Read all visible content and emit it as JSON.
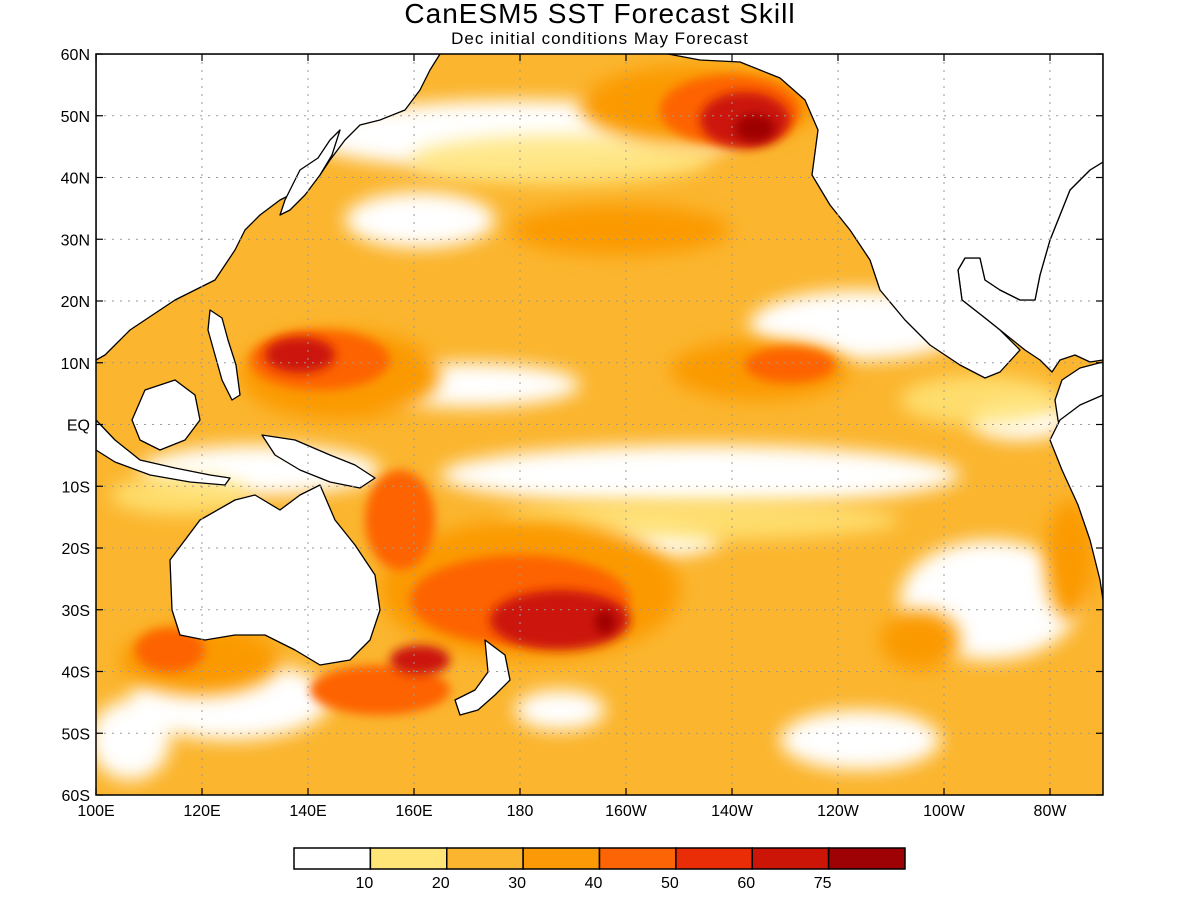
{
  "header": {
    "title": "CanESM5 SST Forecast Skill",
    "subtitle": "Dec initial conditions  May Forecast"
  },
  "map": {
    "lon_range": [
      100,
      290
    ],
    "lat_range": [
      -60,
      60
    ],
    "x_ticks": [
      {
        "lon": 100,
        "label": "100E"
      },
      {
        "lon": 120,
        "label": "120E"
      },
      {
        "lon": 140,
        "label": "140E"
      },
      {
        "lon": 160,
        "label": "160E"
      },
      {
        "lon": 180,
        "label": "180"
      },
      {
        "lon": 200,
        "label": "160W"
      },
      {
        "lon": 220,
        "label": "140W"
      },
      {
        "lon": 240,
        "label": "120W"
      },
      {
        "lon": 260,
        "label": "100W"
      },
      {
        "lon": 280,
        "label": "80W"
      }
    ],
    "y_ticks": [
      {
        "lat": 60,
        "label": "60N"
      },
      {
        "lat": 50,
        "label": "50N"
      },
      {
        "lat": 40,
        "label": "40N"
      },
      {
        "lat": 30,
        "label": "30N"
      },
      {
        "lat": 20,
        "label": "20N"
      },
      {
        "lat": 10,
        "label": "10N"
      },
      {
        "lat": 0,
        "label": "EQ"
      },
      {
        "lat": -10,
        "label": "10S"
      },
      {
        "lat": -20,
        "label": "20S"
      },
      {
        "lat": -30,
        "label": "30S"
      },
      {
        "lat": -40,
        "label": "40S"
      },
      {
        "lat": -50,
        "label": "50S"
      },
      {
        "lat": -60,
        "label": "60S"
      }
    ],
    "colors": {
      "base": "#fbb52e",
      "land": "#ffffff",
      "coast": "#000000",
      "grid": "#9a9a9a"
    }
  },
  "legend": {
    "colors": [
      "#ffffff",
      "#ffe478",
      "#fbb52e",
      "#fb9a06",
      "#fd6405",
      "#eb2d07",
      "#cc1507",
      "#9e0204"
    ],
    "labels": [
      "10",
      "20",
      "30",
      "40",
      "50",
      "60",
      "75"
    ]
  }
}
